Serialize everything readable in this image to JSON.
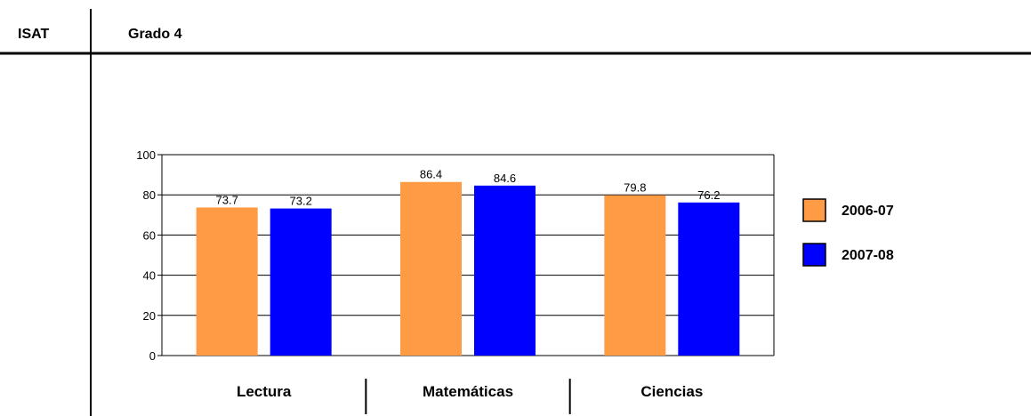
{
  "header": {
    "left_label": "ISAT",
    "title": "Grado 4"
  },
  "chart_data": {
    "type": "bar",
    "title": "",
    "xlabel": "",
    "ylabel": "",
    "categories": [
      "Lectura",
      "Matemáticas",
      "Ciencias"
    ],
    "series": [
      {
        "name": "2006-07",
        "color": "#FF9A45",
        "values": [
          73.7,
          86.4,
          79.8
        ]
      },
      {
        "name": "2007-08",
        "color": "#0000FF",
        "values": [
          73.2,
          84.6,
          76.2
        ]
      }
    ],
    "ylim": [
      0,
      100
    ],
    "yticks": [
      0,
      20,
      40,
      60,
      80,
      100
    ],
    "grid": true,
    "legend_position": "right"
  }
}
